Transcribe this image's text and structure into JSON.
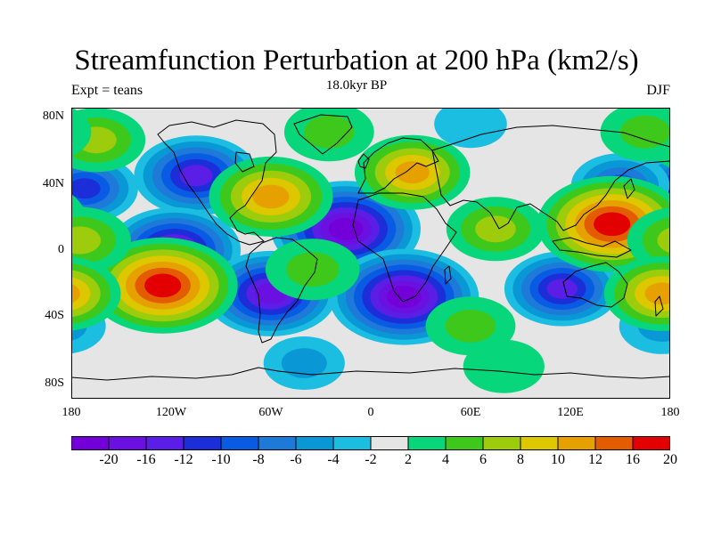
{
  "title": "Streamfunction Perturbation at 200 hPa (km2/s)",
  "subtitle": "18.0kyr BP",
  "left_string": "Expt = teans",
  "right_string": "DJF",
  "lat_labels": [
    "80N",
    "40N",
    "0",
    "40S",
    "80S"
  ],
  "lon_labels": [
    "180",
    "120W",
    "60W",
    "0",
    "60E",
    "120E",
    "180"
  ],
  "colorbar": {
    "labels": [
      "-20",
      "-16",
      "-12",
      "-10",
      "-8",
      "-6",
      "-4",
      "-2",
      "2",
      "4",
      "6",
      "8",
      "10",
      "12",
      "16",
      "20"
    ],
    "colors": [
      "#7400d9",
      "#6a10e0",
      "#5a1ee6",
      "#1c2ed8",
      "#0a5be3",
      "#1e7ad9",
      "#0a97d6",
      "#1bbde0",
      "#e5e5e5",
      "#07d67a",
      "#3ec81c",
      "#9ccc0c",
      "#ddc800",
      "#e6a100",
      "#e35c00",
      "#e20000"
    ]
  },
  "palette": {
    "neutral": "#e5e5e5",
    "coast": "#000000"
  },
  "field_centers": [
    {
      "lon": -105,
      "lat": 48,
      "level": -14
    },
    {
      "lon": -118,
      "lat": 2,
      "level": -16
    },
    {
      "lon": -60,
      "lat": -25,
      "level": -16
    },
    {
      "lon": -15,
      "lat": 15,
      "level": -20
    },
    {
      "lon": 20,
      "lat": -27,
      "level": -20
    },
    {
      "lon": 115,
      "lat": -22,
      "level": -12
    },
    {
      "lon": -172,
      "lat": 40,
      "level": -10
    },
    {
      "lon": 150,
      "lat": 42,
      "level": -8
    },
    {
      "lon": 60,
      "lat": 80,
      "level": -2
    },
    {
      "lon": -40,
      "lat": -68,
      "level": -4
    },
    {
      "lon": 175,
      "lat": -45,
      "level": -5
    },
    {
      "lon": -125,
      "lat": -20,
      "level": 20
    },
    {
      "lon": 145,
      "lat": 18,
      "level": 20
    },
    {
      "lon": -60,
      "lat": 35,
      "level": 14
    },
    {
      "lon": 25,
      "lat": 50,
      "level": 12
    },
    {
      "lon": 75,
      "lat": 15,
      "level": 8
    },
    {
      "lon": -165,
      "lat": 70,
      "level": 8
    },
    {
      "lon": -25,
      "lat": 75,
      "level": 6
    },
    {
      "lon": 60,
      "lat": -45,
      "level": 6
    },
    {
      "lon": 80,
      "lat": -70,
      "level": 4
    },
    {
      "lon": -35,
      "lat": -10,
      "level": 7
    },
    {
      "lon": 165,
      "lat": 75,
      "level": 6
    },
    {
      "lon": -175,
      "lat": 8,
      "level": 9
    },
    {
      "lon": 175,
      "lat": -25,
      "level": 12
    }
  ]
}
